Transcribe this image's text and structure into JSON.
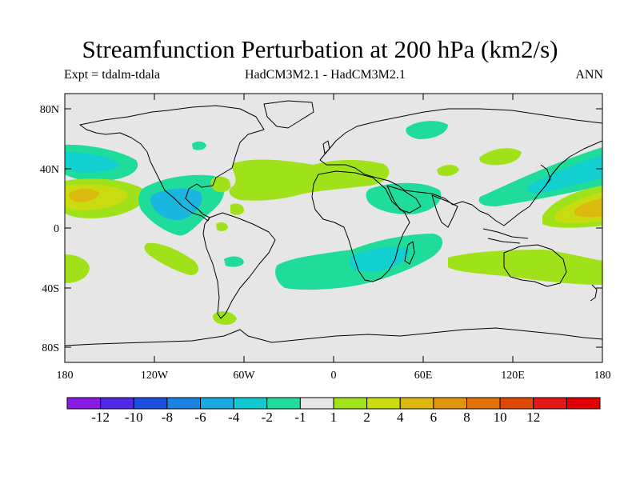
{
  "title": "Streamfunction Perturbation at 200 hPa (km2/s)",
  "subtitle_left": "Expt = tdalm-tdala",
  "subtitle_center": "HadCM3M2.1 - HadCM3M2.1",
  "subtitle_right": "ANN",
  "colors": {
    "ocean_bg": "#e6e6e6",
    "neg1": "#1fdc9a",
    "neg2": "#12d0d0",
    "neg4": "#1ab6e0",
    "pos1": "#a0e21a",
    "pos2": "#c8dc10",
    "pos4": "#dcb90e"
  },
  "chart_data": {
    "type": "contour-map",
    "variable": "Streamfunction Perturbation",
    "level": "200 hPa",
    "units": "km2/s",
    "y_ticks": [
      "80N",
      "40N",
      "0",
      "40S",
      "80S"
    ],
    "x_ticks": [
      "180",
      "120W",
      "60W",
      "0",
      "60E",
      "120E",
      "180"
    ],
    "lon_range": [
      -180,
      180
    ],
    "lat_range": [
      -90,
      90
    ],
    "colorbar_labels": [
      "-12",
      "-10",
      "-8",
      "-6",
      "-4",
      "-2",
      "-1",
      "1",
      "2",
      "4",
      "6",
      "8",
      "10",
      "12"
    ],
    "colorbar_colors": [
      "#8a1ae6",
      "#4f28e6",
      "#1c50e0",
      "#1a82e0",
      "#1aa8e0",
      "#12cad2",
      "#1fdc9a",
      "#e6e6e6",
      "#a0e21a",
      "#c8dc10",
      "#dcb90e",
      "#e0960a",
      "#e07208",
      "#e04a06",
      "#e01818",
      "#e00000"
    ]
  }
}
